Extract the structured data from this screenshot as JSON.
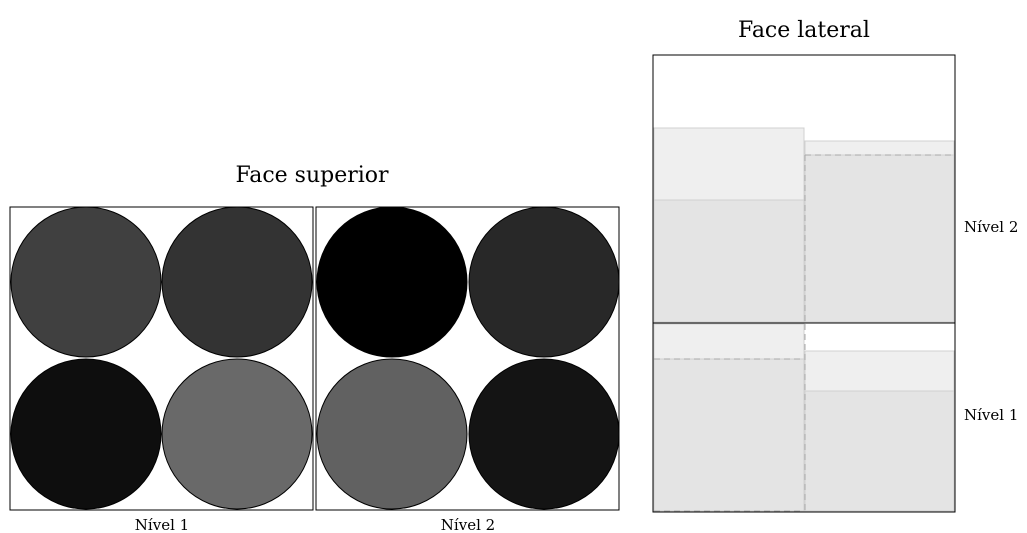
{
  "top_view": {
    "title": "Face superior",
    "panels": [
      {
        "label": "Nível 1",
        "circle_colors": [
          "#404040",
          "#333333",
          "#0e0e0e",
          "#696969"
        ]
      },
      {
        "label": "Nível 2",
        "circle_colors": [
          "#000000",
          "#282828",
          "#616161",
          "#141414"
        ]
      }
    ]
  },
  "side_view": {
    "title": "Face lateral",
    "levels": [
      {
        "label": "Nível 2"
      },
      {
        "label": "Nível 1"
      }
    ]
  },
  "colors": {
    "outline": "#000000",
    "fill_light": "#efefef",
    "fill_mid": "#e4e4e4",
    "dashed": "#a8a8a8"
  }
}
